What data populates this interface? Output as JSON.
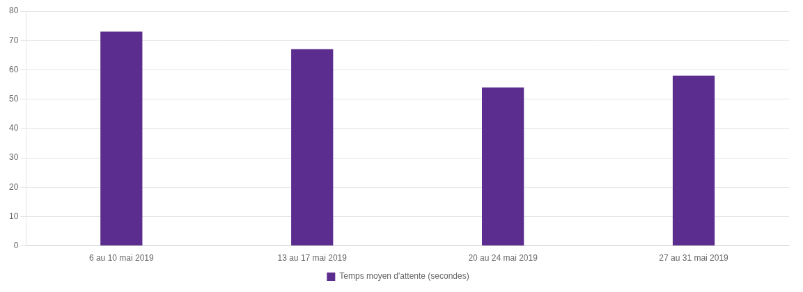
{
  "chart_data": {
    "type": "bar",
    "categories": [
      "6 au 10 mai 2019",
      "13 au 17 mai 2019",
      "20 au 24 mai 2019",
      "27 au 31 mai 2019"
    ],
    "series": [
      {
        "name": "Temps moyen d'attente (secondes)",
        "color": "#5b2d8e",
        "values": [
          73,
          67,
          54,
          58
        ]
      }
    ],
    "ylim": [
      0,
      80
    ],
    "yticks": [
      0,
      10,
      20,
      30,
      40,
      50,
      60,
      70,
      80
    ],
    "grid": true,
    "legend": "bottom"
  }
}
